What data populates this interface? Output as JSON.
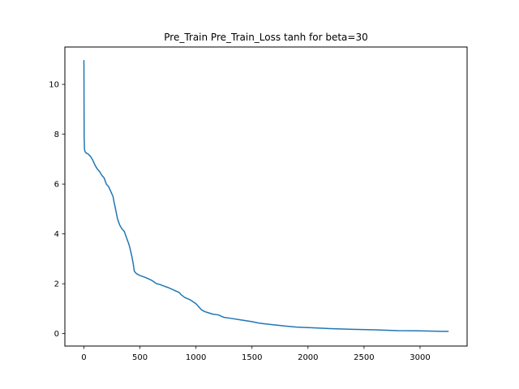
{
  "chart_data": {
    "type": "line",
    "title": "Pre_Train Pre_Train_Loss tanh for beta=30",
    "xlabel": "",
    "ylabel": "",
    "xlim": [
      -170,
      3420
    ],
    "ylim": [
      -0.5,
      11.5
    ],
    "xticks": [
      0,
      500,
      1000,
      1500,
      2000,
      2500,
      3000
    ],
    "yticks": [
      0,
      2,
      4,
      6,
      8,
      10
    ],
    "grid": false,
    "legend": "none",
    "series": [
      {
        "color": "#1f77b4",
        "x": [
          0,
          2,
          5,
          10,
          20,
          40,
          60,
          80,
          100,
          120,
          140,
          160,
          180,
          200,
          220,
          240,
          260,
          270,
          280,
          300,
          320,
          340,
          360,
          380,
          400,
          410,
          420,
          430,
          440,
          450,
          460,
          470,
          480,
          490,
          500,
          550,
          600,
          650,
          680,
          700,
          750,
          800,
          850,
          870,
          900,
          950,
          1000,
          1050,
          1080,
          1100,
          1150,
          1200,
          1250,
          1300,
          1400,
          1500,
          1550,
          1600,
          1700,
          1800,
          1900,
          2000,
          2200,
          2400,
          2600,
          2800,
          3000,
          3200,
          3250
        ],
        "y": [
          10.95,
          7.9,
          7.4,
          7.3,
          7.25,
          7.2,
          7.1,
          6.95,
          6.75,
          6.6,
          6.5,
          6.35,
          6.25,
          6.0,
          5.9,
          5.7,
          5.5,
          5.25,
          5.05,
          4.6,
          4.35,
          4.2,
          4.1,
          3.85,
          3.6,
          3.45,
          3.25,
          3.05,
          2.8,
          2.5,
          2.45,
          2.4,
          2.38,
          2.35,
          2.33,
          2.25,
          2.15,
          2.0,
          1.97,
          1.93,
          1.85,
          1.75,
          1.65,
          1.55,
          1.45,
          1.35,
          1.2,
          0.95,
          0.88,
          0.85,
          0.78,
          0.75,
          0.65,
          0.62,
          0.55,
          0.48,
          0.43,
          0.4,
          0.35,
          0.3,
          0.26,
          0.24,
          0.2,
          0.17,
          0.15,
          0.12,
          0.11,
          0.09,
          0.09
        ]
      }
    ]
  }
}
